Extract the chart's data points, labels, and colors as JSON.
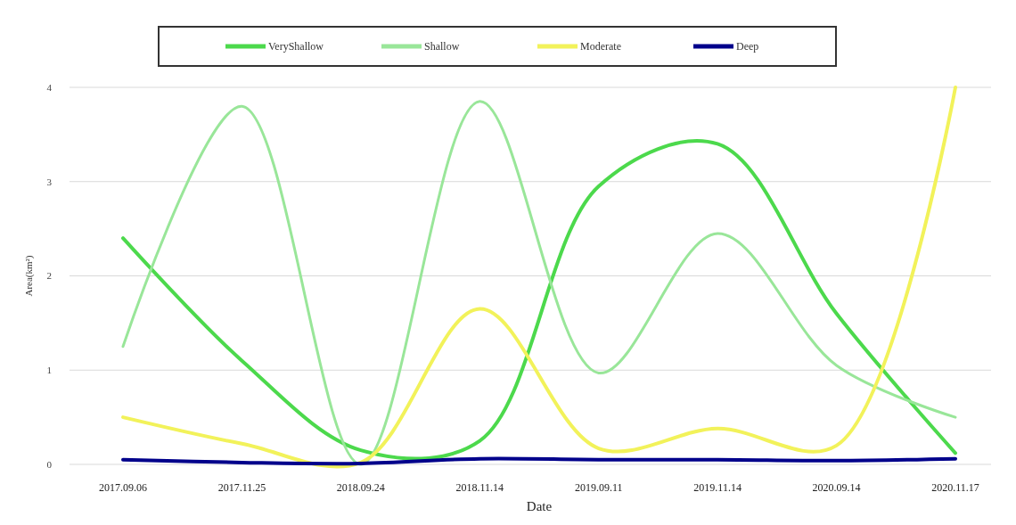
{
  "chart_data": {
    "type": "line",
    "xlabel": "Date",
    "ylabel": "Area(km²)",
    "categories": [
      "2017.09.06",
      "2017.11.25",
      "2018.09.24",
      "2018.11.14",
      "2019.09.11",
      "2019.11.14",
      "2020.09.14",
      "2020.11.17"
    ],
    "series": [
      {
        "name": "VeryShallow",
        "color": "#4cd94c",
        "values": [
          2.4,
          1.1,
          0.15,
          0.25,
          2.95,
          3.4,
          1.6,
          0.12
        ]
      },
      {
        "name": "Shallow",
        "color": "#99e699",
        "values": [
          1.25,
          3.8,
          0.0,
          3.85,
          0.97,
          2.45,
          1.05,
          0.5
        ]
      },
      {
        "name": "Moderate",
        "color": "#f2f25a",
        "values": [
          0.5,
          0.22,
          0.02,
          1.65,
          0.17,
          0.38,
          0.2,
          4.0
        ]
      },
      {
        "name": "Deep",
        "color": "#00008b",
        "values": [
          0.05,
          0.02,
          0.01,
          0.06,
          0.05,
          0.05,
          0.04,
          0.06
        ]
      }
    ],
    "ylim": [
      0,
      4
    ],
    "yticks": [
      0,
      1,
      2,
      3,
      4
    ],
    "grid": "y",
    "legend": "top",
    "marker": "none",
    "line_style": "solid"
  }
}
